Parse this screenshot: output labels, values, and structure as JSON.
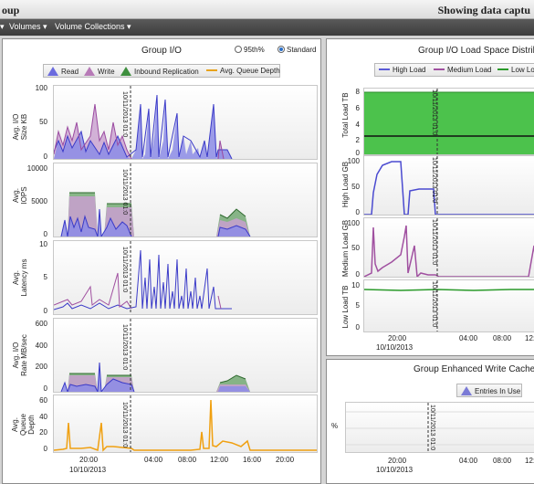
{
  "window": {
    "title_left": "oup",
    "title_right": "Showing data captu"
  },
  "menu": [
    {
      "label": "Volumes"
    },
    {
      "label": "Volume Collections"
    }
  ],
  "group_io": {
    "title": "Group I/O",
    "radio_95": "95th%",
    "radio_standard": "Standard",
    "selected": "Standard",
    "legend": [
      {
        "label": "Read",
        "color": "#6b6bde",
        "kind": "area"
      },
      {
        "label": "Write",
        "color": "#b77ab7",
        "kind": "area"
      },
      {
        "label": "Inbound Replication",
        "color": "#3e8f3e",
        "kind": "area"
      },
      {
        "label": "Avg. Queue Depth",
        "color": "#e8a31c",
        "kind": "line"
      }
    ],
    "charts": [
      {
        "ylabel": "Avg. I/O\nSize KB",
        "ticks": [
          "100",
          "50",
          "0"
        ]
      },
      {
        "ylabel": "Avg.\nIOPS",
        "ticks": [
          "10000",
          "5000",
          "0"
        ]
      },
      {
        "ylabel": "Avg.\nLatency ms",
        "ticks": [
          "10",
          "5",
          "0"
        ]
      },
      {
        "ylabel": "Avg. I/O\nRate MB/sec",
        "ticks": [
          "600",
          "400",
          "200",
          "0"
        ]
      },
      {
        "ylabel": "Avg.\nQueue\nDepth",
        "ticks": [
          "60",
          "40",
          "20",
          "0"
        ]
      }
    ],
    "stamp": "10/11/2013 01:0",
    "x_ticks": [
      "20:00",
      "04:00",
      "08:00",
      "12:00",
      "16:00",
      "20:00"
    ],
    "x_date": "10/10/2013"
  },
  "load_space": {
    "title": "Group I/O Load Space Distrib",
    "legend": [
      {
        "label": "High Load",
        "color": "#5b5bd6"
      },
      {
        "label": "Medium Load",
        "color": "#a050a0"
      },
      {
        "label": "Low Loa",
        "color": "#2a9a2a"
      }
    ],
    "charts": [
      {
        "ylabel": "Total Load TB",
        "ticks": [
          "8",
          "6",
          "4",
          "2",
          "0"
        ]
      },
      {
        "ylabel": "High Load GB",
        "ticks": [
          "100",
          "50",
          "0"
        ]
      },
      {
        "ylabel": "Medium Load GB",
        "ticks": [
          "100",
          "50",
          "0"
        ]
      },
      {
        "ylabel": "Low Load TB",
        "ticks": [
          "10",
          "5",
          "0"
        ]
      }
    ],
    "stamp": "10/11/2013 01:0",
    "x_ticks": [
      "20:00",
      "04:00",
      "08:00",
      "12:"
    ],
    "x_date": "10/10/2013"
  },
  "write_cache": {
    "title": "Group Enhanced Write Cache",
    "legend": [
      {
        "label": "Entries In Use",
        "color": "#7b7bd6"
      }
    ],
    "ylabel": "%",
    "stamp": "10/11/2013 01:0",
    "x_ticks": [
      "20:00",
      "04:00",
      "08:00",
      "12:"
    ],
    "x_date": "10/10/2013"
  }
}
